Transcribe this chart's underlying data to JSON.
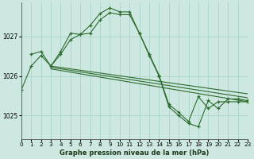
{
  "title": "Graphe pression niveau de la mer (hPa)",
  "bg_color": "#cce8e0",
  "grid_color": "#aad4c8",
  "line_color": "#2d6a2d",
  "xlim": [
    0,
    23
  ],
  "ylim": [
    1024.4,
    1027.85
  ],
  "yticks": [
    1025,
    1026,
    1027
  ],
  "xticks": [
    0,
    1,
    2,
    3,
    4,
    5,
    6,
    7,
    8,
    9,
    10,
    11,
    12,
    13,
    14,
    15,
    16,
    17,
    18,
    19,
    20,
    21,
    22,
    23
  ],
  "line1_x": [
    0,
    1,
    2,
    3,
    4,
    5,
    6,
    7,
    8,
    9,
    10,
    11,
    12,
    13,
    14,
    15,
    16,
    17,
    18,
    19,
    20,
    21,
    22,
    23
  ],
  "line1_y": [
    1025.65,
    1026.25,
    1026.52,
    1026.25,
    1026.55,
    1026.92,
    1027.05,
    1027.28,
    1027.58,
    1027.72,
    1027.62,
    1027.62,
    1027.08,
    1026.55,
    1026.02,
    1025.28,
    1025.08,
    1024.85,
    1025.48,
    1025.18,
    1025.35,
    1025.35,
    1025.35,
    1025.35
  ],
  "line2_x": [
    1,
    2,
    3,
    4,
    5,
    6,
    7,
    8,
    9,
    10,
    11,
    12,
    13,
    14,
    15,
    16,
    17,
    18,
    19,
    20,
    21,
    22,
    23
  ],
  "line2_y": [
    1026.55,
    1026.62,
    1026.25,
    1026.62,
    1027.08,
    1027.05,
    1027.08,
    1027.42,
    1027.6,
    1027.55,
    1027.55,
    1027.08,
    1026.52,
    1026.0,
    1025.22,
    1025.0,
    1024.8,
    1024.72,
    1025.38,
    1025.18,
    1025.42,
    1025.42,
    1025.38
  ],
  "diag_lines": [
    {
      "x": [
        3,
        23
      ],
      "y": [
        1026.25,
        1025.55
      ]
    },
    {
      "x": [
        3,
        23
      ],
      "y": [
        1026.22,
        1025.45
      ]
    },
    {
      "x": [
        3,
        23
      ],
      "y": [
        1026.18,
        1025.35
      ]
    }
  ]
}
